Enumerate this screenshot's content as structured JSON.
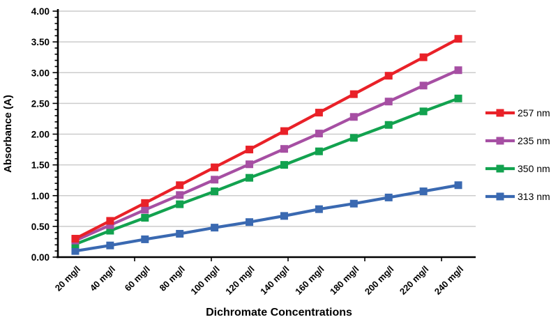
{
  "chart_data": {
    "type": "line",
    "title": "",
    "xlabel": "Dichromate Concentrations",
    "ylabel": "Absorbance (A)",
    "categories": [
      "20 mg/l",
      "40 mg/l",
      "60 mg/l",
      "80 mg/l",
      "100 mg/l",
      "120 mg/l",
      "140 mg/l",
      "160 mg/l",
      "180 mg/l",
      "200 mg/l",
      "220 mg/l",
      "240 mg/l"
    ],
    "series": [
      {
        "name": "257 nm",
        "color": "#E92128",
        "values": [
          0.3,
          0.59,
          0.88,
          1.17,
          1.46,
          1.75,
          2.05,
          2.35,
          2.65,
          2.95,
          3.25,
          3.55
        ]
      },
      {
        "name": "235 nm",
        "color": "#A64FA3",
        "values": [
          0.27,
          0.52,
          0.77,
          1.01,
          1.26,
          1.51,
          1.76,
          2.01,
          2.28,
          2.53,
          2.79,
          3.04
        ]
      },
      {
        "name": "350 nm",
        "color": "#12A24F",
        "values": [
          0.21,
          0.43,
          0.64,
          0.86,
          1.07,
          1.29,
          1.5,
          1.72,
          1.94,
          2.15,
          2.37,
          2.58
        ]
      },
      {
        "name": "313 nm",
        "color": "#3A69B1",
        "values": [
          0.1,
          0.19,
          0.29,
          0.38,
          0.48,
          0.57,
          0.67,
          0.78,
          0.87,
          0.97,
          1.07,
          1.17
        ]
      }
    ],
    "ylim": [
      0,
      4
    ],
    "y_major_step": 0.5,
    "y_minor_step": 0.1,
    "y_tick_labels": [
      "0.00",
      "0.50",
      "1.00",
      "1.50",
      "2.00",
      "2.50",
      "3.00",
      "3.50",
      "4.00"
    ],
    "grid": "horizontal-major",
    "legend_position": "right",
    "marker": "square"
  },
  "colors": {
    "background": "#FFFFFF",
    "gridline": "#CCCCCC",
    "axis": "#000000",
    "text": "#000000"
  }
}
